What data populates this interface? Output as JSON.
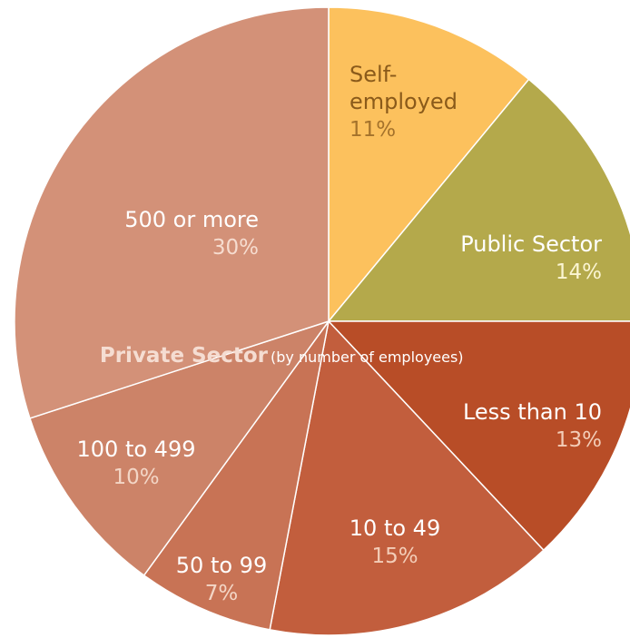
{
  "chart_data": {
    "type": "pie",
    "title": "",
    "group_label": "Private Sector",
    "group_note": "(by number of employees)",
    "slices": [
      {
        "name_lines": [
          "Self-",
          "employed"
        ],
        "label": "Self-employed",
        "value": 11,
        "value_label": "11%",
        "color": "#fcc15d",
        "name_color": "#8a5a1a",
        "value_color": "#a4722b"
      },
      {
        "name_lines": [
          "Public Sector"
        ],
        "label": "Public Sector",
        "value": 14,
        "value_label": "14%",
        "color": "#b4a94b",
        "name_color": "#ffffff",
        "value_color": "#fbf5d2"
      },
      {
        "name_lines": [
          "Less than 10"
        ],
        "label": "Less than 10",
        "value": 13,
        "value_label": "13%",
        "color": "#b84d27",
        "name_color": "#ffffff",
        "value_color": "#f3cdb8"
      },
      {
        "name_lines": [
          "10 to 49"
        ],
        "label": "10 to 49",
        "value": 15,
        "value_label": "15%",
        "color": "#c25e3d",
        "name_color": "#ffffff",
        "value_color": "#f3cdb8"
      },
      {
        "name_lines": [
          "50 to 99"
        ],
        "label": "50 to 99",
        "value": 7,
        "value_label": "7%",
        "color": "#c87355",
        "name_color": "#ffffff",
        "value_color": "#f3d6c6"
      },
      {
        "name_lines": [
          "100 to 499"
        ],
        "label": "100 to 499",
        "value": 10,
        "value_label": "10%",
        "color": "#cc8368",
        "name_color": "#ffffff",
        "value_color": "#f3d6c6"
      },
      {
        "name_lines": [
          "500 or more"
        ],
        "label": "500 or more",
        "value": 30,
        "value_label": "30%",
        "color": "#d39178",
        "name_color": "#ffffff",
        "value_color": "#f6dccf"
      }
    ],
    "group_title_color": "#f5ddd2",
    "group_note_color": "#ffffff"
  }
}
